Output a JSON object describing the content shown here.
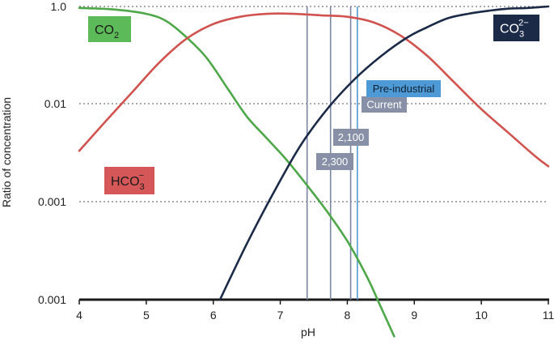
{
  "chart_data": {
    "type": "line",
    "title": "",
    "xlabel": "pH",
    "ylabel": "Ratio of concentration",
    "xlim": [
      4,
      11
    ],
    "x_ticks": [
      "4",
      "5",
      "6",
      "7",
      "8",
      "9",
      "10",
      "11"
    ],
    "y_ticks": [
      "1.0",
      "0.01",
      "0.001",
      "0.001"
    ],
    "grid": "horizontal dotted",
    "series": [
      {
        "name": "CO2",
        "label_main": "CO",
        "label_sub": "2",
        "color": "#4ea84a",
        "label_color": "#5cba58",
        "x": [
          4.0,
          4.5,
          5.0,
          5.3,
          5.6,
          5.9,
          6.2,
          6.5,
          6.8,
          7.1,
          7.4,
          7.7,
          8.0,
          8.3,
          8.5,
          8.7
        ],
        "y": [
          0.99,
          0.98,
          0.95,
          0.9,
          0.79,
          0.65,
          0.45,
          0.25,
          0.1,
          -0.05,
          -0.22,
          -0.4,
          -0.6,
          -0.85,
          -1.05,
          -1.25
        ]
      },
      {
        "name": "HCO3-",
        "label_main": "HCO",
        "label_sub": "3",
        "label_sup": "−",
        "color": "#d1534f",
        "label_color": "#d65757",
        "x": [
          4.0,
          4.4,
          4.8,
          5.2,
          5.6,
          6.0,
          6.4,
          6.8,
          7.2,
          7.6,
          8.0,
          8.4,
          8.8,
          9.2,
          9.6,
          10.0,
          10.4,
          10.8,
          11.0
        ],
        "y": [
          0.015,
          0.22,
          0.42,
          0.62,
          0.78,
          0.88,
          0.93,
          0.95,
          0.95,
          0.94,
          0.93,
          0.89,
          0.8,
          0.66,
          0.48,
          0.3,
          0.14,
          -0.02,
          -0.09
        ]
      },
      {
        "name": "CO3 2-",
        "label_main": "CO",
        "label_sub": "3",
        "label_sup": "2−",
        "color": "#1b2a47",
        "label_color": "#1b2a47",
        "x": [
          6.1,
          6.5,
          6.9,
          7.3,
          7.7,
          8.1,
          8.5,
          8.9,
          9.2,
          9.5,
          9.8,
          10.1,
          10.4,
          10.7,
          11.0
        ],
        "y": [
          -1.0,
          -0.62,
          -0.27,
          0.05,
          0.3,
          0.5,
          0.66,
          0.79,
          0.86,
          0.92,
          0.95,
          0.97,
          0.985,
          0.99,
          1.0
        ]
      }
    ],
    "vertical_markers": [
      {
        "label": "2,300",
        "x": 7.4,
        "color": "#7b86a3"
      },
      {
        "label": "2,100",
        "x": 7.75,
        "color": "#7b86a3"
      },
      {
        "label": "Current",
        "x": 8.05,
        "color": "#7b86a3"
      },
      {
        "label": "Pre-industrial",
        "x": 8.15,
        "color": "#4e9ad6"
      }
    ]
  }
}
